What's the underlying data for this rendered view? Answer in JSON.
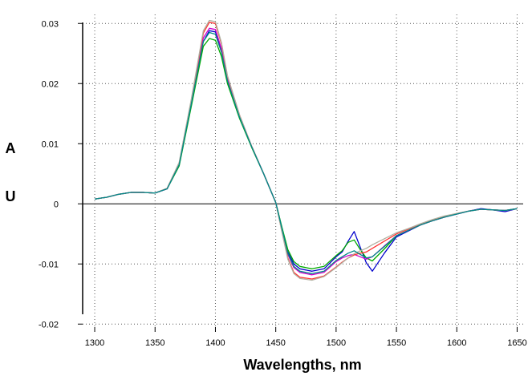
{
  "chart_data": {
    "type": "line",
    "title": "",
    "xlabel": "Wavelengths, nm",
    "ylabel_letters": [
      "A",
      "U"
    ],
    "xlim": [
      1290,
      1655
    ],
    "ylim": [
      -0.0205,
      0.0315
    ],
    "xticks": [
      1300,
      1350,
      1400,
      1450,
      1500,
      1550,
      1600,
      1650
    ],
    "xtick_labels": [
      "1300",
      "1350",
      "1400",
      "1450",
      "1500",
      "1550",
      "1600",
      "1650"
    ],
    "yticks": [
      -0.02,
      -0.01,
      0,
      0.01,
      0.02,
      0.03
    ],
    "ytick_labels": [
      "-0.02",
      "-0.01",
      "0",
      "0.01",
      "0.02",
      "0.03"
    ],
    "grid": true,
    "zero_line": true,
    "x": [
      1300,
      1310,
      1320,
      1330,
      1340,
      1350,
      1360,
      1370,
      1380,
      1390,
      1395,
      1400,
      1405,
      1410,
      1420,
      1430,
      1440,
      1450,
      1455,
      1460,
      1465,
      1470,
      1480,
      1490,
      1500,
      1505,
      1510,
      1515,
      1520,
      1525,
      1530,
      1540,
      1550,
      1560,
      1570,
      1580,
      1590,
      1600,
      1610,
      1620,
      1630,
      1640,
      1650
    ],
    "series": [
      {
        "color": "#0000cc",
        "values": [
          0.0008,
          0.0011,
          0.0016,
          0.0019,
          0.0019,
          0.0018,
          0.0025,
          0.0065,
          0.0165,
          0.027,
          0.0288,
          0.0286,
          0.0255,
          0.0205,
          0.0145,
          0.0095,
          0.005,
          0.0002,
          -0.004,
          -0.008,
          -0.01,
          -0.0108,
          -0.0112,
          -0.0108,
          -0.0088,
          -0.008,
          -0.0062,
          -0.0046,
          -0.0072,
          -0.0098,
          -0.0112,
          -0.0082,
          -0.0055,
          -0.0045,
          -0.0035,
          -0.0028,
          -0.0022,
          -0.0017,
          -0.0012,
          -0.0008,
          -0.001,
          -0.0013,
          -0.0008
        ]
      },
      {
        "color": "#00aa00",
        "values": [
          0.0008,
          0.0011,
          0.0016,
          0.0019,
          0.0019,
          0.0018,
          0.0025,
          0.0063,
          0.0162,
          0.0262,
          0.0275,
          0.0272,
          0.0245,
          0.02,
          0.0142,
          0.0094,
          0.005,
          0.0002,
          -0.0038,
          -0.0076,
          -0.0096,
          -0.0104,
          -0.0108,
          -0.0104,
          -0.0086,
          -0.0078,
          -0.0064,
          -0.006,
          -0.0076,
          -0.009,
          -0.0095,
          -0.0075,
          -0.0053,
          -0.0044,
          -0.0035,
          -0.0028,
          -0.0022,
          -0.0017,
          -0.0012,
          -0.0009,
          -0.001,
          -0.0011,
          -0.0008
        ]
      },
      {
        "color": "#cc00cc",
        "values": [
          0.0008,
          0.0011,
          0.0016,
          0.0019,
          0.0019,
          0.0018,
          0.0025,
          0.0066,
          0.0168,
          0.0276,
          0.0292,
          0.029,
          0.0258,
          0.0208,
          0.0146,
          0.0096,
          0.005,
          0.0002,
          -0.0042,
          -0.0084,
          -0.0106,
          -0.0114,
          -0.0118,
          -0.0114,
          -0.0096,
          -0.009,
          -0.0086,
          -0.0084,
          -0.0088,
          -0.0092,
          -0.0088,
          -0.007,
          -0.0053,
          -0.0044,
          -0.0035,
          -0.0028,
          -0.0022,
          -0.0017,
          -0.0012,
          -0.0009,
          -0.001,
          -0.0011,
          -0.0008
        ]
      },
      {
        "color": "#ff3333",
        "values": [
          0.0008,
          0.0011,
          0.0016,
          0.0019,
          0.0019,
          0.0018,
          0.0026,
          0.0068,
          0.0172,
          0.0284,
          0.0302,
          0.03,
          0.0266,
          0.0212,
          0.0148,
          0.0096,
          0.005,
          0.0002,
          -0.0045,
          -0.009,
          -0.0114,
          -0.0122,
          -0.0125,
          -0.012,
          -0.0105,
          -0.0097,
          -0.009,
          -0.0085,
          -0.0082,
          -0.008,
          -0.0074,
          -0.0062,
          -0.005,
          -0.0042,
          -0.0034,
          -0.0027,
          -0.0021,
          -0.0016,
          -0.0012,
          -0.0009,
          -0.001,
          -0.0011,
          -0.0008
        ]
      },
      {
        "color": "#b0b0a0",
        "values": [
          0.0008,
          0.0011,
          0.0016,
          0.0019,
          0.0019,
          0.0018,
          0.0026,
          0.0069,
          0.0174,
          0.0288,
          0.0305,
          0.0303,
          0.0268,
          0.0213,
          0.0148,
          0.0096,
          0.005,
          0.0002,
          -0.0046,
          -0.0092,
          -0.0116,
          -0.0124,
          -0.0127,
          -0.0121,
          -0.0106,
          -0.0098,
          -0.009,
          -0.0083,
          -0.0078,
          -0.0074,
          -0.0068,
          -0.0058,
          -0.0048,
          -0.0041,
          -0.0033,
          -0.0026,
          -0.002,
          -0.0016,
          -0.0012,
          -0.0009,
          -0.001,
          -0.0011,
          -0.0008
        ]
      },
      {
        "color": "#008888",
        "values": [
          0.0008,
          0.0011,
          0.0016,
          0.0019,
          0.0019,
          0.0018,
          0.0025,
          0.0065,
          0.0166,
          0.027,
          0.0285,
          0.0282,
          0.0252,
          0.0204,
          0.0144,
          0.0095,
          0.005,
          0.0002,
          -0.004,
          -0.0082,
          -0.0104,
          -0.0112,
          -0.0116,
          -0.0112,
          -0.0094,
          -0.0088,
          -0.0082,
          -0.0078,
          -0.0084,
          -0.009,
          -0.0088,
          -0.0071,
          -0.0053,
          -0.0044,
          -0.0035,
          -0.0028,
          -0.0022,
          -0.0017,
          -0.0012,
          -0.0009,
          -0.001,
          -0.0011,
          -0.0008
        ]
      }
    ]
  }
}
